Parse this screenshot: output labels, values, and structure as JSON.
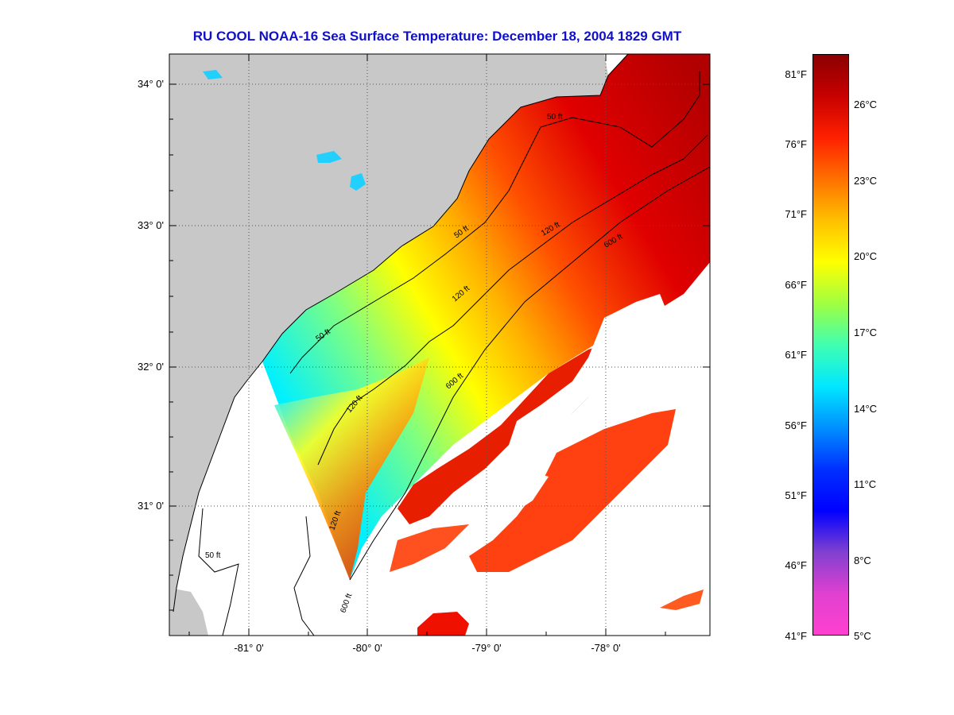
{
  "title": "RU COOL  NOAA-16  Sea Surface Temperature:  December 18, 2004 1829 GMT",
  "colors": {
    "title": "#1010c8",
    "land": "#c8c8c8",
    "no_data": "#ffffff",
    "contour": "#000000",
    "grid": "#555555"
  },
  "map": {
    "lat_ticks": [
      "34° 0'",
      "33° 0'",
      "32° 0'",
      "31° 0'"
    ],
    "lon_ticks": [
      "-81° 0'",
      "-80° 0'",
      "-79° 0'",
      "-78° 0'"
    ],
    "contours": [
      "50 ft",
      "120 ft",
      "600 ft"
    ],
    "grid": "dotted"
  },
  "colorbar": {
    "fahrenheit": [
      "81°F",
      "76°F",
      "71°F",
      "66°F",
      "61°F",
      "56°F",
      "51°F",
      "46°F",
      "41°F"
    ],
    "celsius": [
      "26°C",
      "23°C",
      "20°C",
      "17°C",
      "14°C",
      "11°C",
      "8°C",
      "5°C"
    ],
    "gradient": [
      "#8b0000",
      "#c80000",
      "#ff2000",
      "#ff7000",
      "#ffc000",
      "#ffff00",
      "#a0ff40",
      "#40ffb0",
      "#00e8ff",
      "#0090ff",
      "#0030ff",
      "#0000ff",
      "#8040d0",
      "#e040d0",
      "#ff40d0"
    ]
  }
}
